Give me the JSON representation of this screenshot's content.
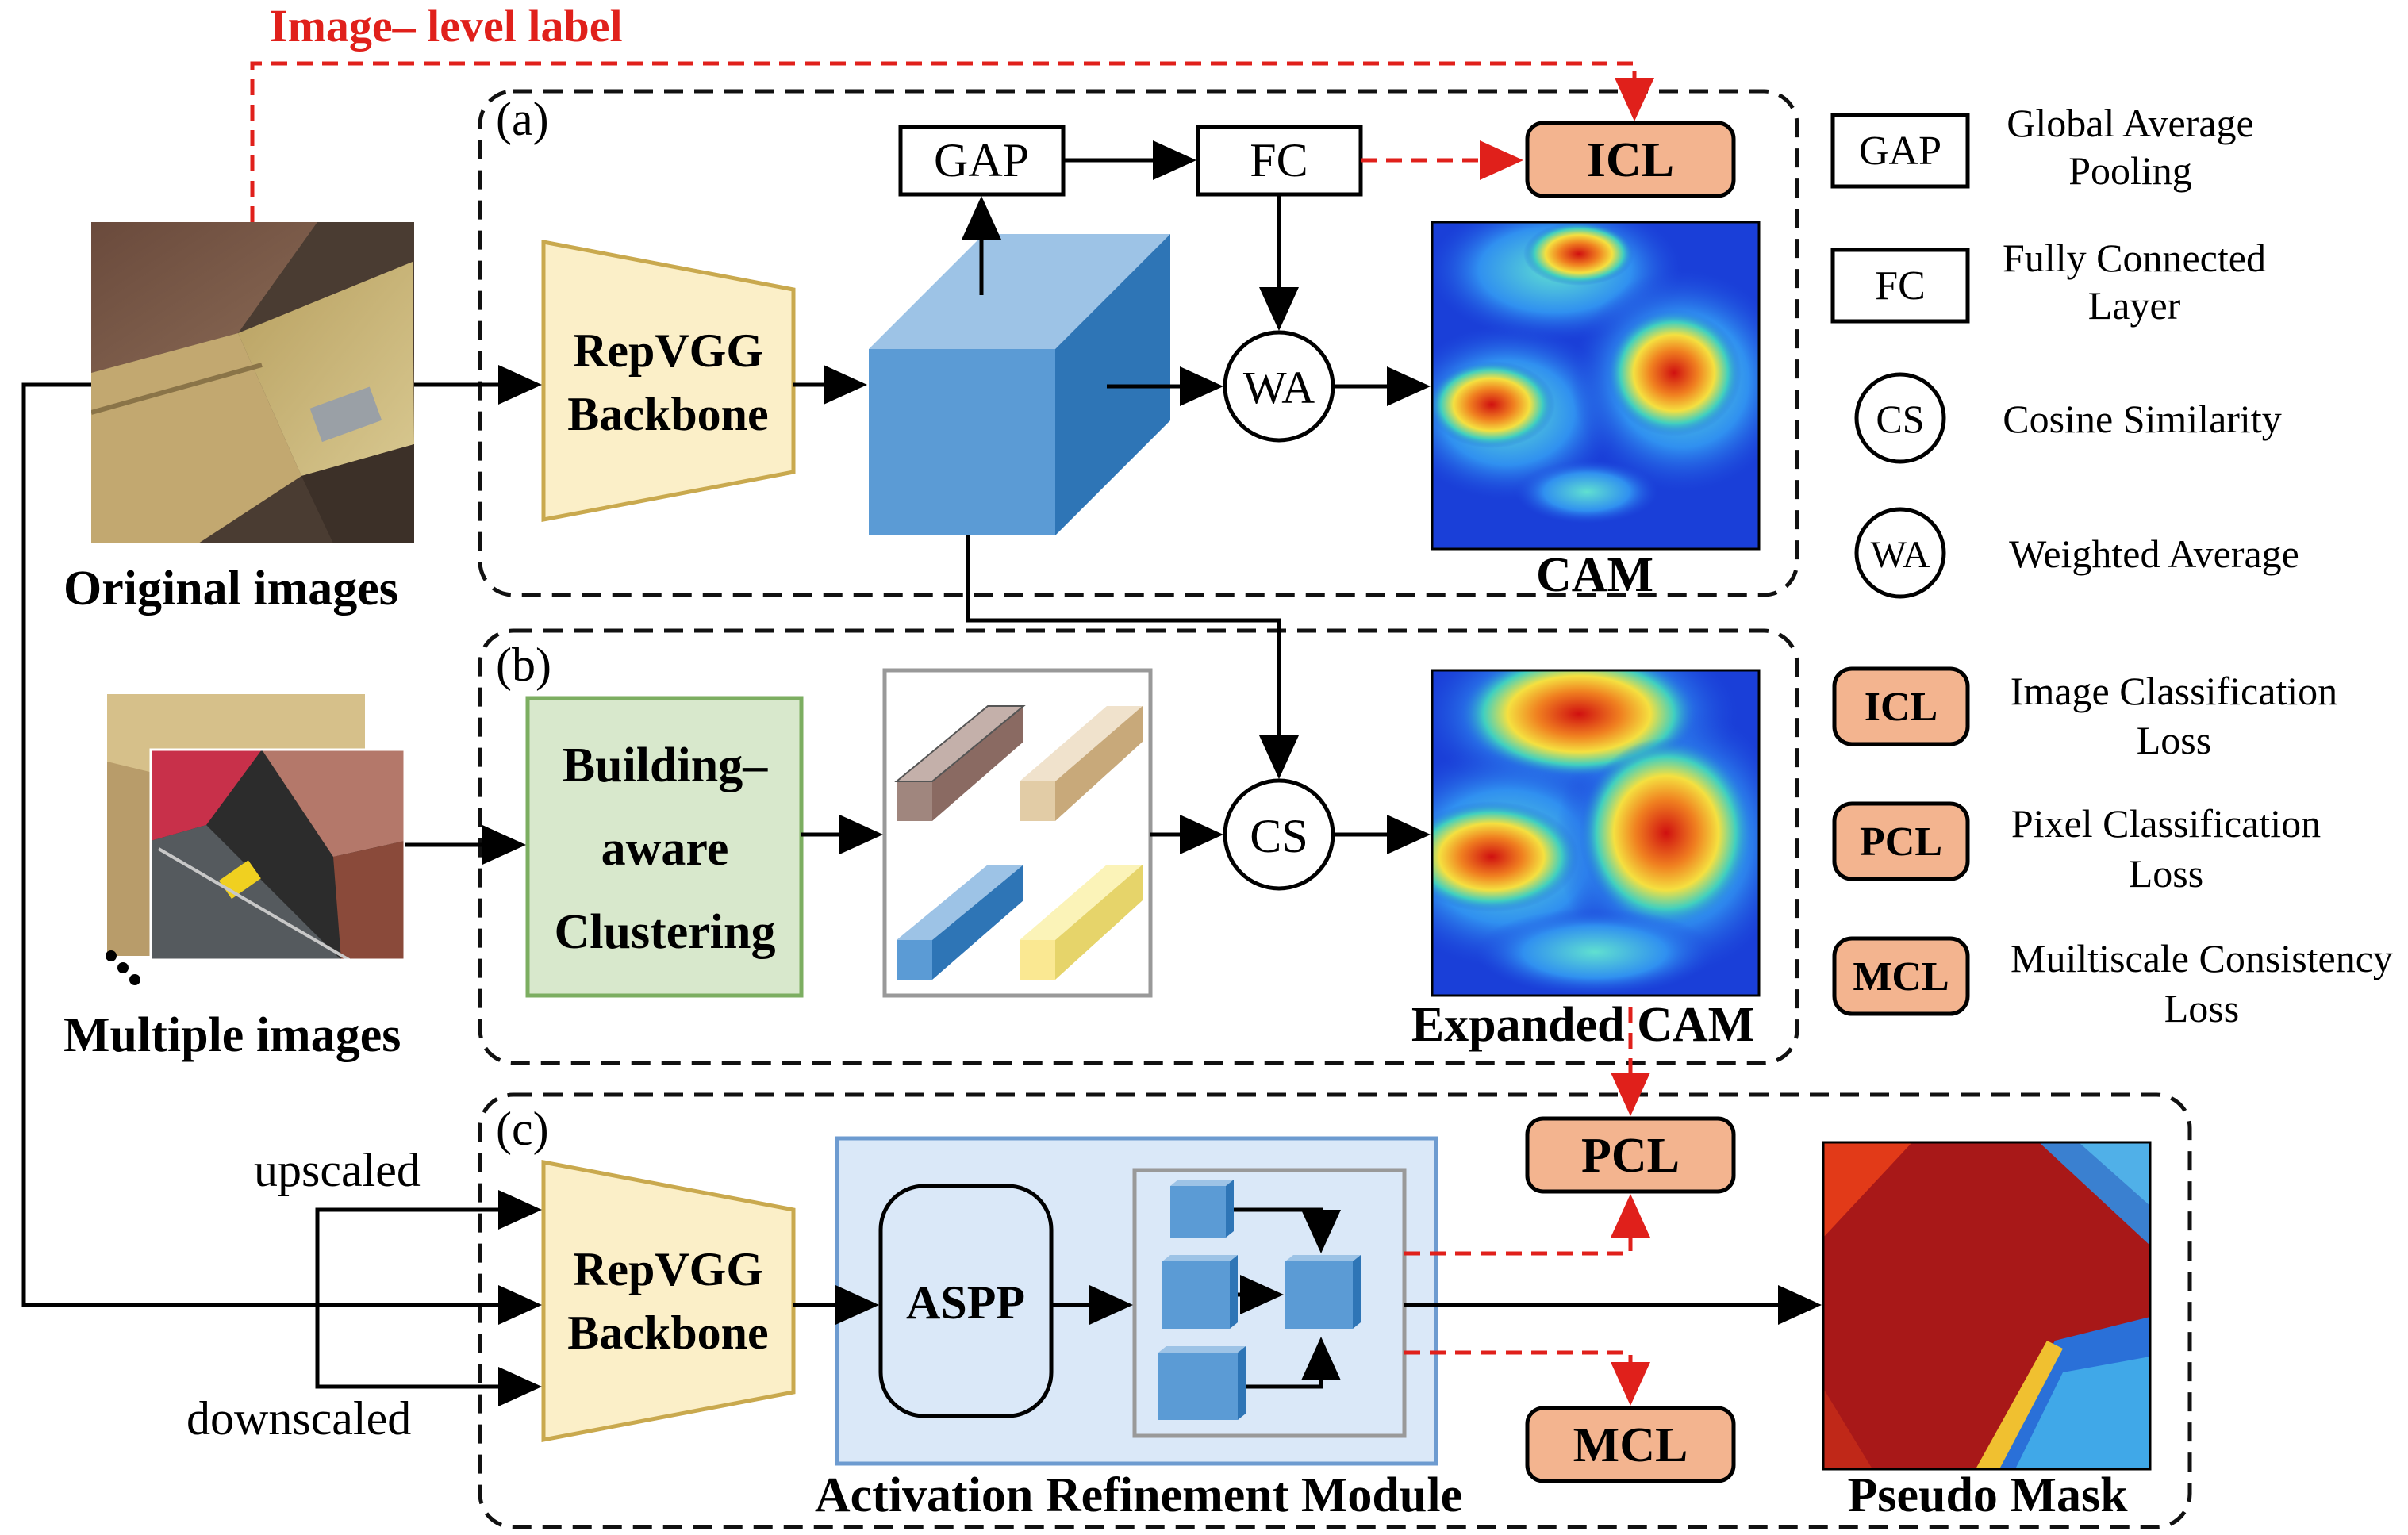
{
  "labels": {
    "image_level_label": "Image– level label",
    "panel_a": "(a)",
    "panel_b": "(b)",
    "panel_c": "(c)",
    "original_images": "Original images",
    "multiple_images": "Multiple images",
    "backbone_line1": "RepVGG",
    "backbone_line2": "Backbone",
    "gap": "GAP",
    "fc": "FC",
    "wa": "WA",
    "cs": "CS",
    "icl": "ICL",
    "pcl": "PCL",
    "mcl": "MCL",
    "cam": "CAM",
    "expanded_cam": "Expanded CAM",
    "clustering_line1": "Building–",
    "clustering_line2": "aware",
    "clustering_line3": "Clustering",
    "upscaled": "upscaled",
    "downscaled": "downscaled",
    "aspp": "ASPP",
    "arm_title": "Activation Refinement Module",
    "pseudo_mask": "Pseudo Mask"
  },
  "legend": {
    "gap_abbr": "GAP",
    "gap_line1": "Global Average",
    "gap_line2": "Pooling",
    "fc_abbr": "FC",
    "fc_line1": "Fully Connected",
    "fc_line2": "Layer",
    "cs_abbr": "CS",
    "cs_line1": "Cosine Similarity",
    "wa_abbr": "WA",
    "wa_line1": "Weighted Average",
    "icl_abbr": "ICL",
    "icl_line1": "Image Classification",
    "icl_line2": "Loss",
    "pcl_abbr": "PCL",
    "pcl_line1": "Pixel Classification",
    "pcl_line2": "Loss",
    "mcl_abbr": "MCL",
    "mcl_line1": "Muiltiscale Consistency",
    "mcl_line2": "Loss"
  },
  "colors": {
    "loss_fill": "#f3b48f",
    "backbone_fill": "#fbefc8",
    "backbone_stroke": "#c9a94e",
    "cube_front": "#5b9bd5",
    "cube_top": "#9dc3e6",
    "cube_side": "#2e75b6",
    "cluster_fill": "#d8e8cc",
    "cluster_stroke": "#7cae61",
    "arm_fill": "#dae8f8",
    "arm_stroke": "#6d9bd0",
    "red_arrow": "#e0201b"
  }
}
